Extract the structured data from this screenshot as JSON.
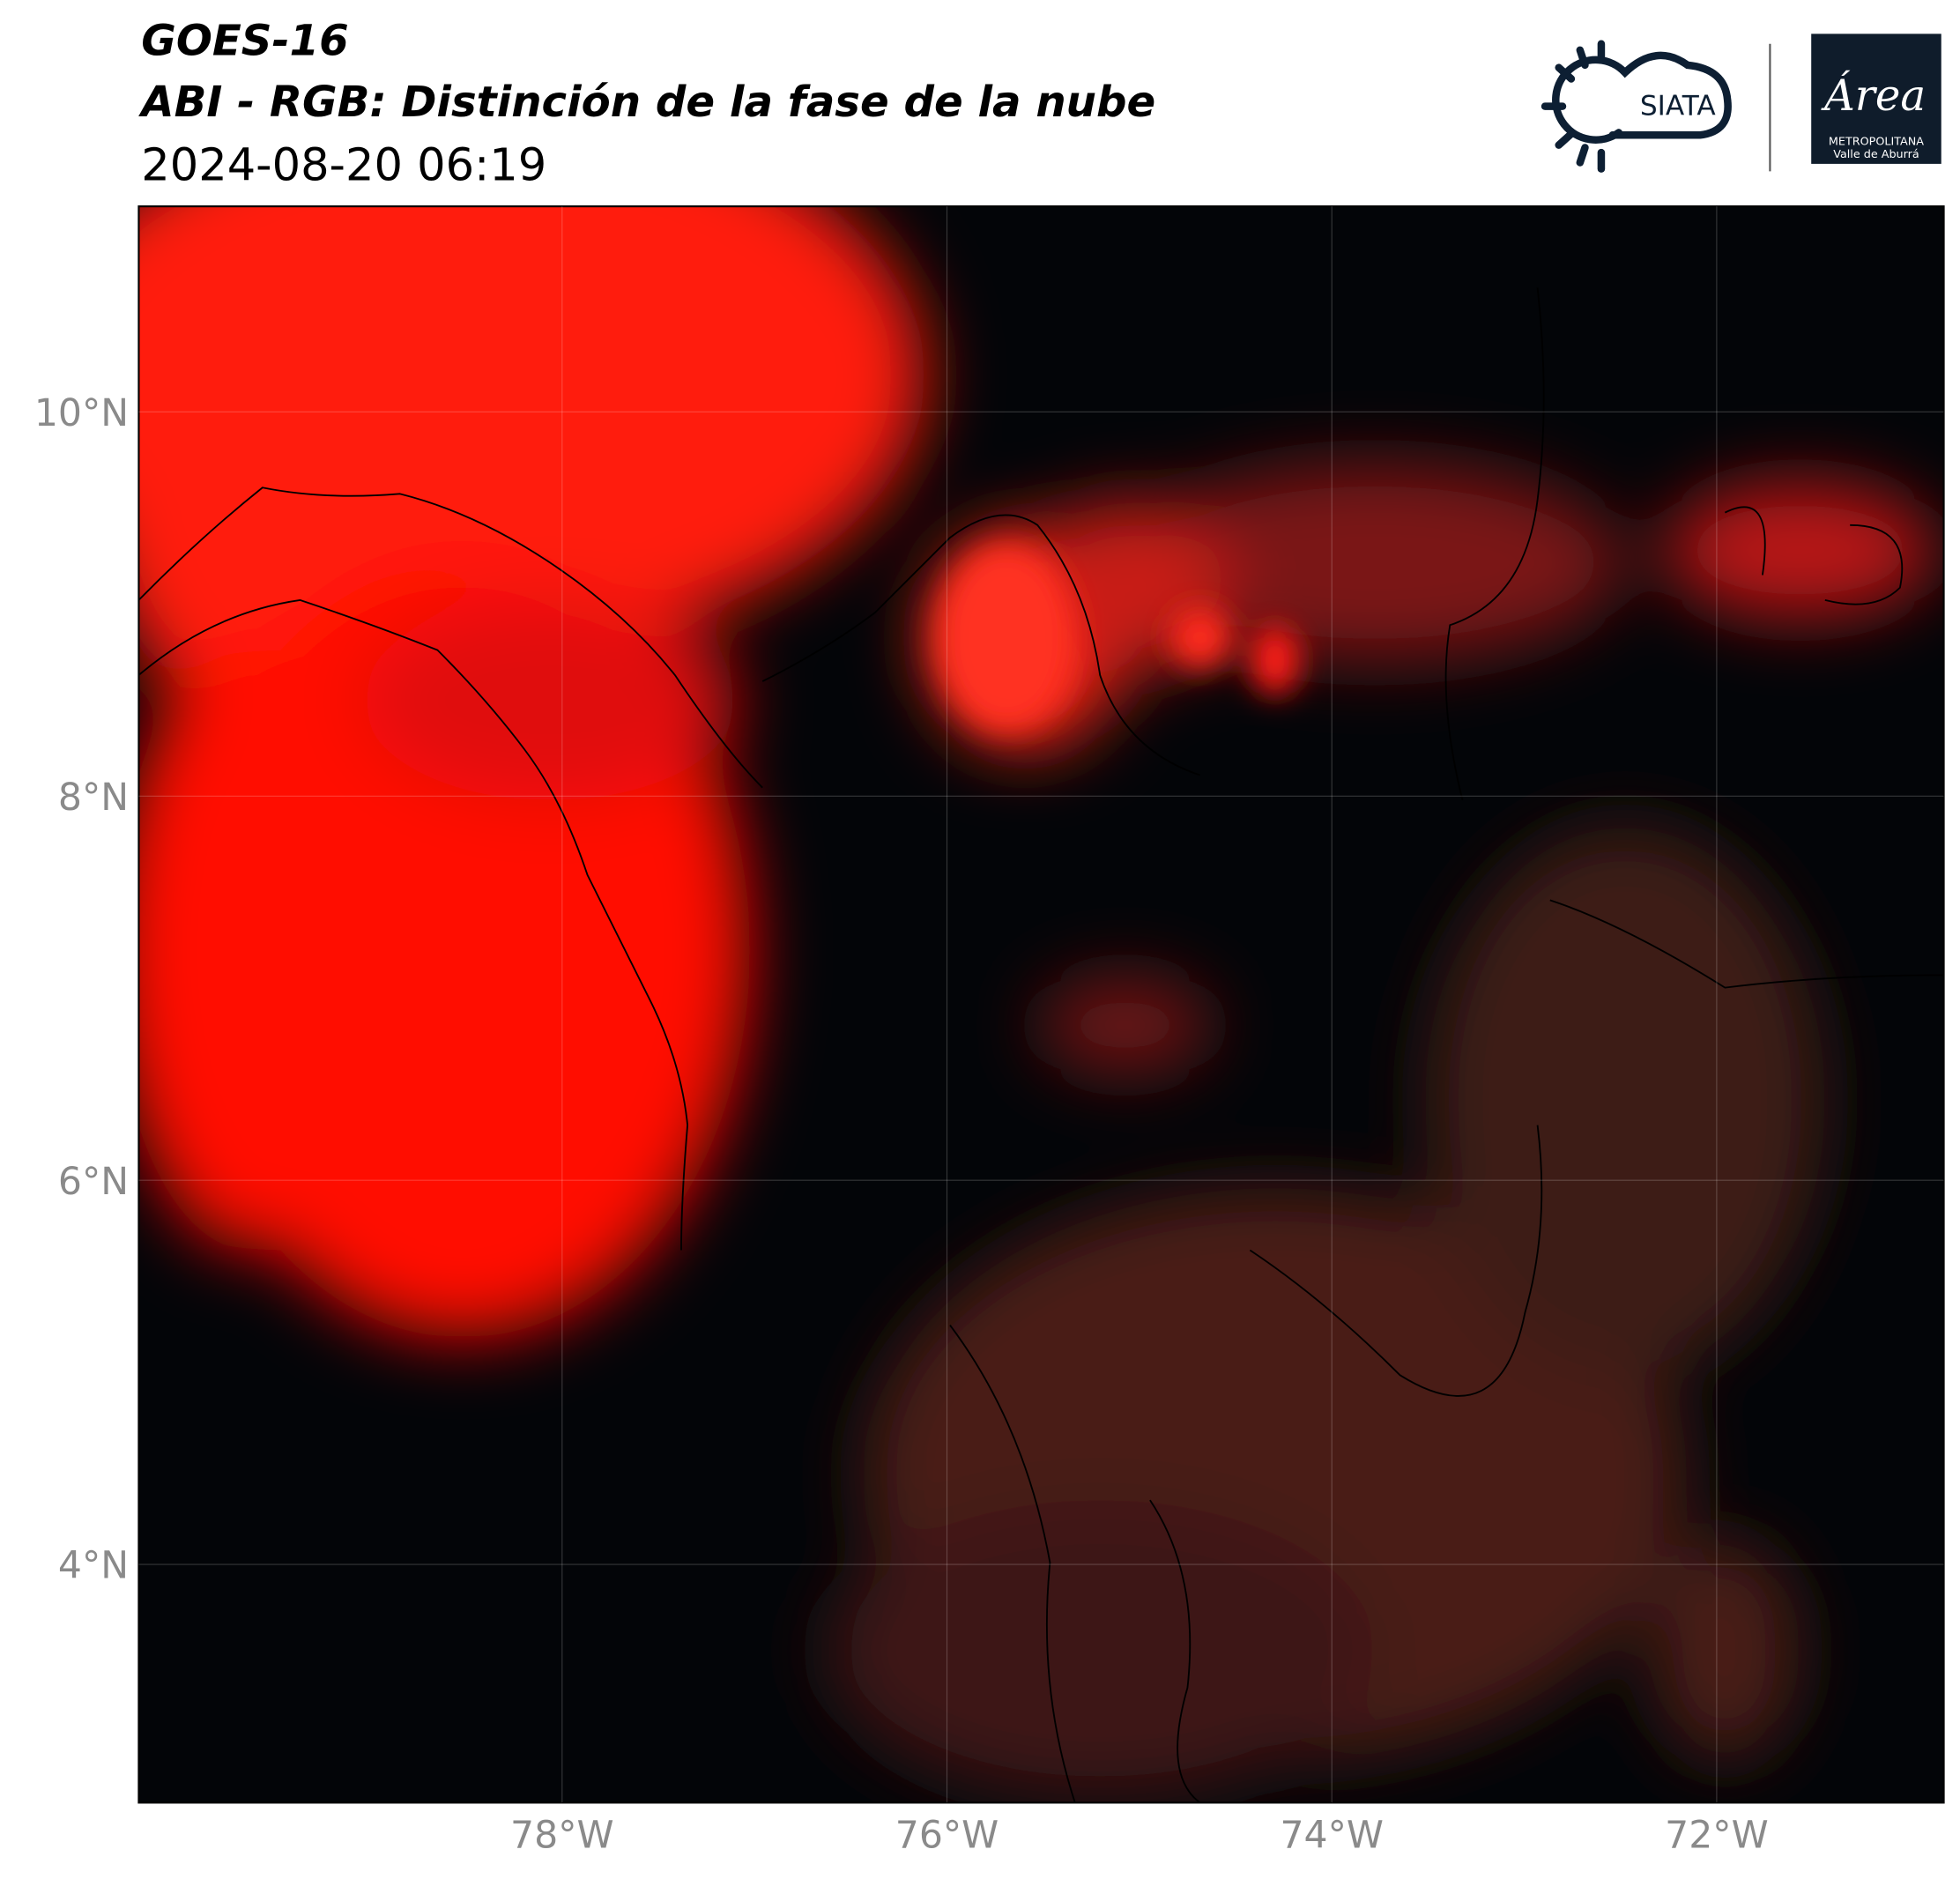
{
  "header": {
    "title": "GOES-16",
    "subtitle": "ABI - RGB: Distinción de la fase de la nube",
    "timestamp": "2024-08-20 06:19"
  },
  "logos": {
    "siata": "SIATA",
    "area": "Área",
    "area_line1": "METROPOLITANA",
    "area_line2": "Valle de Aburrá"
  },
  "map": {
    "lonlim": [
      -80.2,
      -70.82
    ],
    "latlim": [
      2.76,
      11.07
    ],
    "lonticks": [
      {
        "value": -78,
        "label": "78°W"
      },
      {
        "value": -76,
        "label": "76°W"
      },
      {
        "value": -74,
        "label": "74°W"
      },
      {
        "value": -72,
        "label": "72°W"
      }
    ],
    "latticks": [
      {
        "value": 10,
        "label": "10°N"
      },
      {
        "value": 8,
        "label": "8°N"
      },
      {
        "value": 6,
        "label": "6°N"
      },
      {
        "value": 4,
        "label": "4°N"
      }
    ],
    "grid": true
  }
}
